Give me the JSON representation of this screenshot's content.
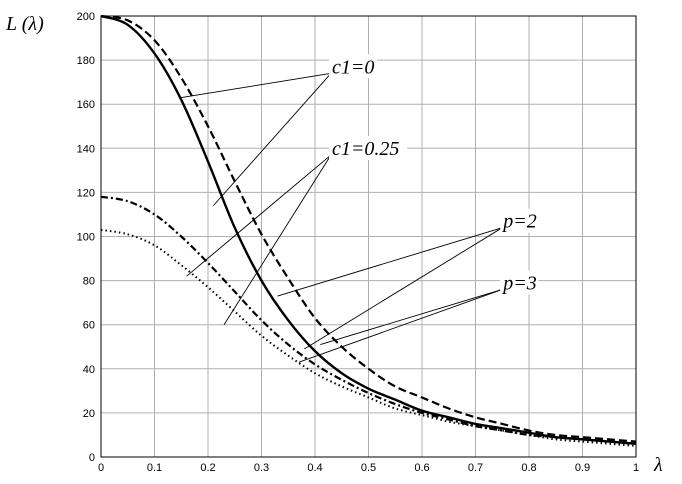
{
  "chart_data": {
    "type": "line",
    "title": "",
    "xlabel": "λ",
    "ylabel": "L (λ)",
    "xlim": [
      0,
      1
    ],
    "ylim": [
      0,
      200
    ],
    "xticks": [
      0,
      0.1,
      0.2,
      0.3,
      0.4,
      0.5,
      0.6,
      0.7,
      0.8,
      0.9,
      1
    ],
    "xtick_labels": [
      "0",
      "0.1",
      "0.2",
      "0.3",
      "0.4",
      "0.5",
      "0.6",
      "0.7",
      "0.8",
      "0.9",
      "1"
    ],
    "yticks": [
      0,
      20,
      40,
      60,
      80,
      100,
      120,
      140,
      160,
      180,
      200
    ],
    "ytick_labels": [
      "0",
      "20",
      "40",
      "60",
      "80",
      "100",
      "120",
      "140",
      "160",
      "180",
      "200"
    ],
    "grid": true,
    "legend": "none",
    "series": [
      {
        "style": "solid",
        "x": [
          0,
          0.05,
          0.1,
          0.15,
          0.2,
          0.25,
          0.3,
          0.35,
          0.4,
          0.45,
          0.5,
          0.55,
          0.6,
          0.65,
          0.7,
          0.75,
          0.8,
          0.85,
          0.9,
          0.95,
          1
        ],
        "y": [
          200,
          196,
          183,
          162,
          134,
          104,
          80,
          62,
          48,
          38,
          31,
          26,
          21,
          18,
          15,
          13,
          11,
          9,
          8,
          7,
          6
        ]
      },
      {
        "style": "dashed",
        "x": [
          0,
          0.05,
          0.1,
          0.15,
          0.2,
          0.25,
          0.3,
          0.35,
          0.4,
          0.45,
          0.5,
          0.55,
          0.6,
          0.65,
          0.7,
          0.75,
          0.8,
          0.85,
          0.9,
          0.95,
          1
        ],
        "y": [
          200,
          198,
          189,
          172,
          150,
          125,
          101,
          81,
          63,
          50,
          40,
          32,
          27,
          22,
          18,
          15,
          12,
          10,
          9,
          8,
          7
        ]
      },
      {
        "style": "dashdot",
        "x": [
          0,
          0.05,
          0.1,
          0.15,
          0.2,
          0.25,
          0.3,
          0.35,
          0.4,
          0.45,
          0.5,
          0.55,
          0.6,
          0.65,
          0.7,
          0.75,
          0.8,
          0.85,
          0.9,
          0.95,
          1
        ],
        "y": [
          118,
          116,
          110,
          100,
          88,
          75,
          62,
          51,
          42,
          35,
          29,
          24,
          20,
          17,
          14,
          12,
          10,
          9,
          8,
          7,
          6
        ]
      },
      {
        "style": "dotted",
        "x": [
          0,
          0.05,
          0.1,
          0.15,
          0.2,
          0.25,
          0.3,
          0.35,
          0.4,
          0.45,
          0.5,
          0.55,
          0.6,
          0.65,
          0.7,
          0.75,
          0.8,
          0.85,
          0.9,
          0.95,
          1
        ],
        "y": [
          103,
          101,
          96,
          87,
          77,
          66,
          55,
          46,
          38,
          32,
          27,
          22,
          19,
          16,
          14,
          12,
          10,
          8,
          7,
          6,
          5
        ]
      }
    ],
    "annotations": [
      {
        "text": "c1=0",
        "x": 0.43,
        "y": 174,
        "targets": [
          [
            0.15,
            163
          ],
          [
            0.21,
            114
          ]
        ]
      },
      {
        "text": "c1=0.25",
        "x": 0.43,
        "y": 137,
        "targets": [
          [
            0.16,
            82
          ],
          [
            0.23,
            60
          ]
        ]
      },
      {
        "text": "p=2",
        "x": 0.75,
        "y": 104,
        "targets": [
          [
            0.33,
            73
          ],
          [
            0.38,
            49
          ]
        ]
      },
      {
        "text": "p=3",
        "x": 0.75,
        "y": 76,
        "targets": [
          [
            0.41,
            51
          ],
          [
            0.37,
            43
          ]
        ]
      }
    ]
  }
}
